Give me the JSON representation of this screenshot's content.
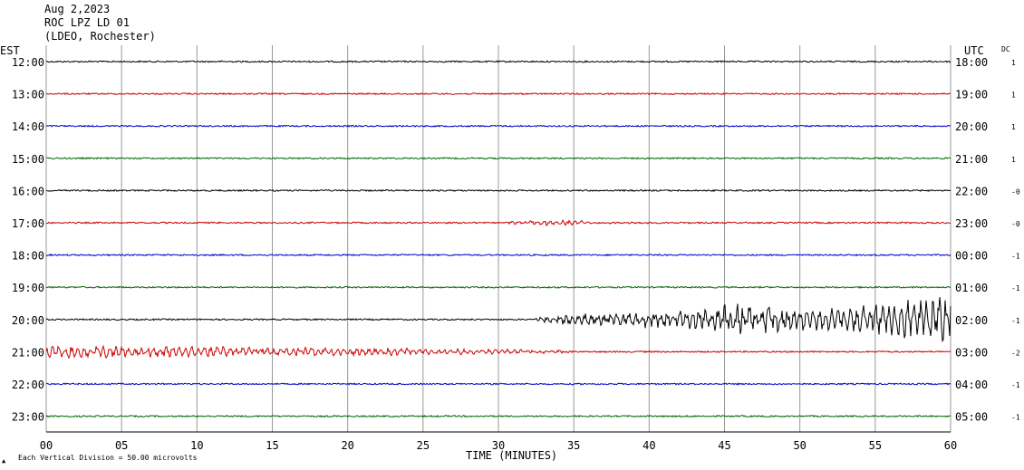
{
  "header": {
    "date": "Aug 2,2023",
    "station": "ROC LPZ LD 01",
    "location": "(LDEO, Rochester)"
  },
  "chart_data": {
    "type": "line",
    "title": "Aug 2,2023",
    "left_axis_label": "EST",
    "right_axis_label": "UTC",
    "dc_label": "DC",
    "xlabel": "TIME (MINUTES)",
    "footer_note": "Each Vertical Division =   50.00 microvolts",
    "xlim": [
      0,
      60
    ],
    "x_ticks": [
      "00",
      "05",
      "10",
      "15",
      "20",
      "25",
      "30",
      "35",
      "40",
      "45",
      "50",
      "55",
      "60"
    ],
    "grid": true,
    "colors": [
      "#000000",
      "#cc0000",
      "#0000cc",
      "#006600"
    ],
    "rows": [
      {
        "est": "12:00",
        "utc": "18:00",
        "dc": "1",
        "color": "#000000"
      },
      {
        "est": "13:00",
        "utc": "19:00",
        "dc": "1",
        "color": "#cc0000"
      },
      {
        "est": "14:00",
        "utc": "20:00",
        "dc": "1",
        "color": "#0000cc"
      },
      {
        "est": "15:00",
        "utc": "21:00",
        "dc": "1",
        "color": "#006600"
      },
      {
        "est": "16:00",
        "utc": "22:00",
        "dc": "-0",
        "color": "#000000"
      },
      {
        "est": "17:00",
        "utc": "23:00",
        "dc": "-0",
        "color": "#cc0000"
      },
      {
        "est": "18:00",
        "utc": "00:00",
        "dc": "-1",
        "color": "#0000cc"
      },
      {
        "est": "19:00",
        "utc": "01:00",
        "dc": "-1",
        "color": "#006600"
      },
      {
        "est": "20:00",
        "utc": "02:00",
        "dc": "-1",
        "color": "#000000"
      },
      {
        "est": "21:00",
        "utc": "03:00",
        "dc": "-2",
        "color": "#cc0000"
      },
      {
        "est": "22:00",
        "utc": "04:00",
        "dc": "-1",
        "color": "#0000cc"
      },
      {
        "est": "23:00",
        "utc": "05:00",
        "dc": "-1",
        "color": "#006600"
      }
    ],
    "events": [
      {
        "row": 5,
        "start_min": 30.0,
        "end_min": 40.0,
        "amplitude": 0.14
      },
      {
        "row": 8,
        "start_min": 32.5,
        "end_min": 60.0,
        "amplitude": 1.6
      },
      {
        "row": 9,
        "start_min": 0.0,
        "end_min": 35.0,
        "amplitude": 0.4
      }
    ]
  }
}
